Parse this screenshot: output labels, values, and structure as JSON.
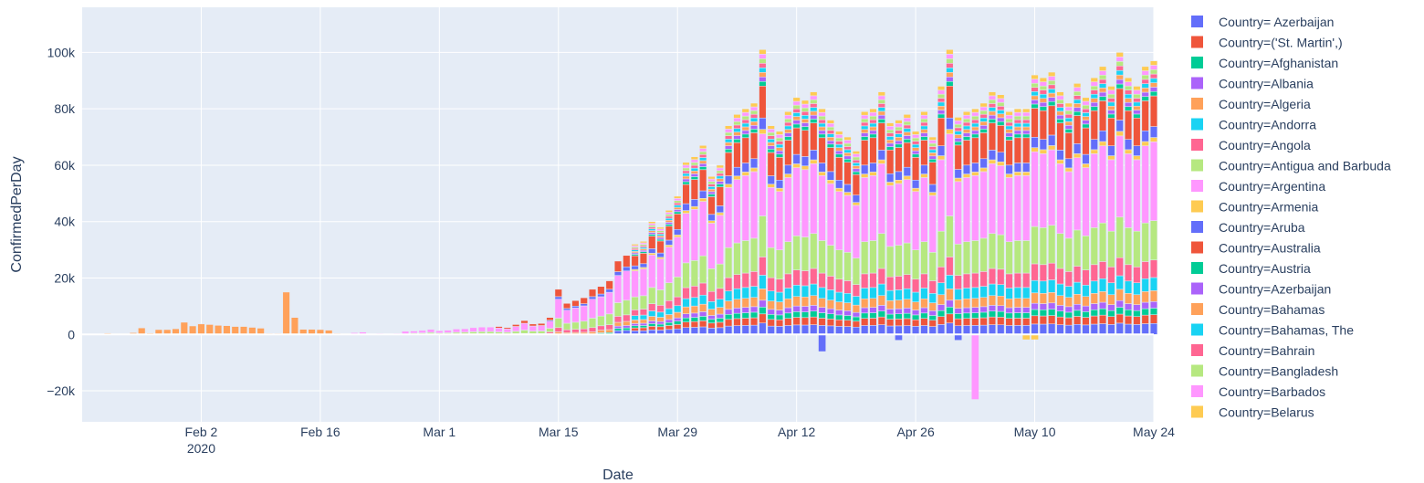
{
  "chart_data": {
    "type": "bar",
    "barmode": "relative",
    "xlabel": "Date",
    "ylabel": "ConfirmedPerDay",
    "x_start": "2020-01-22",
    "x_end": "2020-05-24",
    "xlim": [
      "2020-01-19",
      "2020-05-24"
    ],
    "ylim": [
      -31000,
      116000
    ],
    "grid": true,
    "plot_background": "#e5ecf6",
    "legend_position": "right",
    "x_ticks": [
      {
        "date": "2020-02-02",
        "label": "Feb 2",
        "sub": "2020"
      },
      {
        "date": "2020-02-16",
        "label": "Feb 16"
      },
      {
        "date": "2020-03-01",
        "label": "Mar 1"
      },
      {
        "date": "2020-03-15",
        "label": "Mar 15"
      },
      {
        "date": "2020-03-29",
        "label": "Mar 29"
      },
      {
        "date": "2020-04-12",
        "label": "Apr 12"
      },
      {
        "date": "2020-04-26",
        "label": "Apr 26"
      },
      {
        "date": "2020-05-10",
        "label": "May 10"
      },
      {
        "date": "2020-05-24",
        "label": "May 24"
      }
    ],
    "y_ticks": [
      {
        "value": -20000,
        "label": "−20k"
      },
      {
        "value": 0,
        "label": "0"
      },
      {
        "value": 20000,
        "label": "20k"
      },
      {
        "value": 40000,
        "label": "40k"
      },
      {
        "value": 60000,
        "label": "60k"
      },
      {
        "value": 80000,
        "label": "80k"
      },
      {
        "value": 100000,
        "label": "100k"
      }
    ],
    "daily_totals_positive": [
      500,
      300,
      300,
      600,
      2300,
      500,
      1700,
      1700,
      2000,
      4300,
      3000,
      3700,
      3500,
      3200,
      3100,
      2800,
      2800,
      2500,
      2200,
      400,
      400,
      15000,
      6000,
      1800,
      1800,
      1700,
      1500,
      400,
      300,
      600,
      800,
      300,
      400,
      300,
      400,
      1100,
      1200,
      1400,
      1800,
      1300,
      1500,
      1900,
      2000,
      2400,
      2600,
      2600,
      2800,
      2400,
      3500,
      4900,
      3700,
      3900,
      6000,
      16000,
      11000,
      12000,
      13000,
      16000,
      17000,
      19000,
      26000,
      28000,
      32000,
      33000,
      40000,
      38000,
      44000,
      49000,
      61000,
      63000,
      67000,
      56000,
      60000,
      74000,
      78000,
      80000,
      82000,
      101000,
      74000,
      72000,
      79000,
      84000,
      83000,
      86000,
      80000,
      76000,
      72000,
      70000,
      65000,
      79000,
      80000,
      86000,
      75000,
      76000,
      78000,
      72000,
      79000,
      70000,
      88000,
      101000,
      77000,
      79000,
      80000,
      82000,
      86000,
      85000,
      79000,
      80000,
      80000,
      92000,
      91000,
      93000,
      86000,
      82000,
      89000,
      84000,
      91000,
      95000,
      88000,
      100000,
      91000,
      88000,
      95000,
      97000,
      106000,
      108000,
      100000,
      98000,
      87000
    ],
    "negative_values": [
      {
        "date": "2020-04-15",
        "value": -6000,
        "series": "Country=Aruba"
      },
      {
        "date": "2020-04-24",
        "value": -2000,
        "series": "Country=Aruba"
      },
      {
        "date": "2020-05-01",
        "value": -2000,
        "series": "Country=Aruba"
      },
      {
        "date": "2020-05-03",
        "value": -23000,
        "series": "Country=Barbados"
      },
      {
        "date": "2020-05-09",
        "value": -1800,
        "series": "Country=Belarus"
      },
      {
        "date": "2020-05-10",
        "value": -1800,
        "series": "Country=Belarus"
      }
    ],
    "series": [
      {
        "name": "Country= Azerbaijan",
        "color": "#636efa",
        "share": 0.05,
        "start": "2020-03-22",
        "end": "2020-05-24"
      },
      {
        "name": "Country=('St. Martin',)",
        "color": "#EF553B",
        "share": 0.04,
        "start": "2020-03-24",
        "end": "2020-05-24"
      },
      {
        "name": "Country=Afghanistan",
        "color": "#00cc96",
        "share": 0.03,
        "start": "2020-03-20",
        "end": "2020-05-24"
      },
      {
        "name": "Country=Albania",
        "color": "#ab63fa",
        "share": 0.03,
        "start": "2020-03-22",
        "end": "2020-05-24"
      },
      {
        "name": "Country=Algeria",
        "color": "#FFA15A",
        "share": 0.05,
        "start": "2020-01-22",
        "end": "2020-05-24"
      },
      {
        "name": "Country=Andorra",
        "color": "#19d3f3",
        "share": 0.06,
        "start": "2020-03-24",
        "end": "2020-05-24"
      },
      {
        "name": "Country=Angola",
        "color": "#FF6692",
        "share": 0.08,
        "start": "2020-03-14",
        "end": "2020-05-24"
      },
      {
        "name": "Country=Antigua and Barbuda",
        "color": "#B6E880",
        "share": 0.18,
        "start": "2020-02-27",
        "end": "2020-05-24"
      },
      {
        "name": "Country=Argentina",
        "color": "#FF97FF",
        "share": 0.36,
        "start": "2020-02-20",
        "end": "2020-05-24"
      },
      {
        "name": "Country=Armenia",
        "color": "#FECB52",
        "share": 0.02,
        "start": "2020-03-24",
        "end": "2020-05-24"
      },
      {
        "name": "Country=Aruba",
        "color": "#636efa",
        "share": 0.05,
        "start": "2020-03-14",
        "end": "2020-05-24"
      },
      {
        "name": "Country=Australia",
        "color": "#EF553B",
        "share": 0.14,
        "start": "2020-03-08",
        "end": "2020-05-24"
      },
      {
        "name": "Country=Austria",
        "color": "#00cc96",
        "share": 0.02,
        "start": "2020-03-24",
        "end": "2020-05-24"
      },
      {
        "name": "Country=Azerbaijan",
        "color": "#ab63fa",
        "share": 0.02,
        "start": "2020-03-24",
        "end": "2020-05-24"
      },
      {
        "name": "Country=Bahamas",
        "color": "#FFA15A",
        "share": 0.02,
        "start": "2020-03-24",
        "end": "2020-05-24"
      },
      {
        "name": "Country=Bahamas, The",
        "color": "#19d3f3",
        "share": 0.02,
        "start": "2020-03-24",
        "end": "2020-05-24"
      },
      {
        "name": "Country=Bahrain",
        "color": "#FF6692",
        "share": 0.02,
        "start": "2020-03-24",
        "end": "2020-05-24"
      },
      {
        "name": "Country=Bangladesh",
        "color": "#B6E880",
        "share": 0.02,
        "start": "2020-03-24",
        "end": "2020-05-24"
      },
      {
        "name": "Country=Barbados",
        "color": "#FF97FF",
        "share": 0.02,
        "start": "2020-03-24",
        "end": "2020-05-24"
      },
      {
        "name": "Country=Belarus",
        "color": "#FECB52",
        "share": 0.02,
        "start": "2020-03-24",
        "end": "2020-05-24"
      }
    ]
  }
}
